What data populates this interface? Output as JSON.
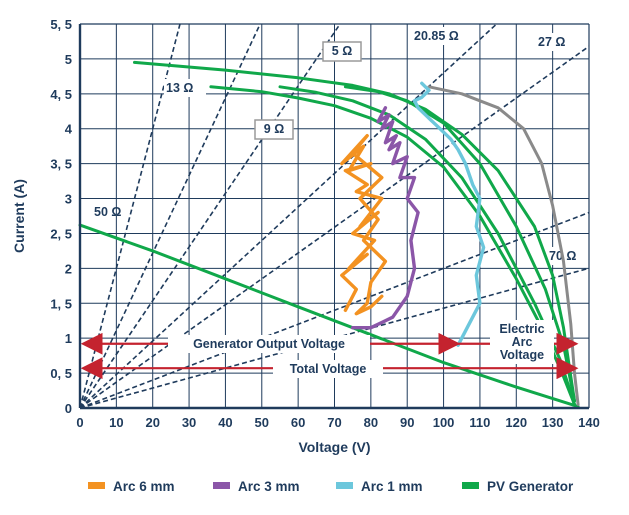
{
  "chart_data": {
    "type": "line",
    "xlabel": "Voltage (V)",
    "ylabel": "Current (A)",
    "xlim": [
      0,
      140
    ],
    "ylim": [
      0,
      5.5
    ],
    "x_ticks": [
      "0",
      "10",
      "20",
      "30",
      "40",
      "50",
      "60",
      "70",
      "80",
      "90",
      "100",
      "110",
      "120",
      "130",
      "140"
    ],
    "y_ticks": [
      "0",
      "0, 5",
      "1",
      "1, 5",
      "2",
      "2, 5",
      "3",
      "3, 5",
      "4",
      "4, 5",
      "5",
      "5, 5"
    ],
    "grid": true,
    "legend_position": "bottom",
    "colors": {
      "navy": "#1f3b5c",
      "pv": "#10a84a",
      "gray": "#8a8a8a",
      "arc6": "#f39221",
      "arc3": "#8b56a8",
      "arc1": "#6cc7dc",
      "red": "#c4232f"
    },
    "legend": [
      {
        "label": "Arc 6 mm",
        "color": "#f39221"
      },
      {
        "label": "Arc 3 mm",
        "color": "#8b56a8"
      },
      {
        "label": "Arc 1 mm",
        "color": "#6cc7dc"
      },
      {
        "label": "PV Generator",
        "color": "#10a84a"
      }
    ],
    "resistance_lines": [
      {
        "label": "50 Ω",
        "slope": 0.02
      },
      {
        "label": "13 Ω",
        "slope": 0.0769
      },
      {
        "label": "9 Ω",
        "slope": 0.111
      },
      {
        "label": "5 Ω",
        "slope": 0.2
      },
      {
        "label": "20.85 Ω",
        "slope": 0.048
      },
      {
        "label": "27 Ω",
        "slope": 0.037
      },
      {
        "label": "70 Ω",
        "slope": 0.0143
      }
    ],
    "series": [
      {
        "name": "PV Generator",
        "x": [
          15,
          40,
          60,
          75,
          85,
          95,
          105,
          115,
          125,
          130,
          133,
          135,
          136
        ],
        "y": [
          4.95,
          4.84,
          4.73,
          4.62,
          4.5,
          4.28,
          3.92,
          3.4,
          2.6,
          1.9,
          1.15,
          0.45,
          0.1
        ]
      },
      {
        "name": "PV Generator",
        "x": [
          36,
          50,
          60,
          70,
          80,
          90,
          100,
          110,
          120,
          128,
          133,
          136
        ],
        "y": [
          4.6,
          4.53,
          4.44,
          4.33,
          4.15,
          3.88,
          3.45,
          2.75,
          1.85,
          1.05,
          0.45,
          0.05
        ]
      },
      {
        "name": "PV Generator",
        "x": [
          55,
          65,
          75,
          85,
          95,
          105,
          115,
          125,
          132,
          136
        ],
        "y": [
          4.6,
          4.52,
          4.4,
          4.2,
          3.85,
          3.3,
          2.5,
          1.5,
          0.7,
          0.05
        ]
      },
      {
        "name": "PV Generator",
        "x": [
          73,
          82,
          90,
          100,
          110,
          120,
          128,
          133,
          136
        ],
        "y": [
          4.6,
          4.53,
          4.4,
          4.08,
          3.5,
          2.6,
          1.7,
          0.9,
          0.1
        ]
      },
      {
        "name": "PV Generator",
        "x": [
          0,
          20,
          40,
          60,
          80,
          100,
          120,
          137
        ],
        "y": [
          2.62,
          2.25,
          1.85,
          1.45,
          1.05,
          0.65,
          0.3,
          0.02
        ]
      },
      {
        "name": "",
        "x": [
          96,
          105,
          115,
          122,
          127,
          130,
          133,
          135,
          136,
          137
        ],
        "y": [
          4.6,
          4.5,
          4.3,
          4.0,
          3.5,
          2.9,
          2.1,
          1.2,
          0.5,
          0.05
        ]
      },
      {
        "name": "Arc 6 mm",
        "x": [
          73,
          76,
          72,
          79,
          74,
          81,
          75,
          82,
          77,
          83,
          76,
          79,
          73,
          80,
          74,
          78,
          72,
          79,
          75,
          83,
          77,
          82,
          78,
          84,
          80,
          79,
          76,
          80,
          83
        ],
        "y": [
          1.4,
          1.7,
          1.9,
          2.2,
          2.0,
          2.4,
          2.5,
          2.8,
          2.6,
          3.0,
          3.1,
          3.2,
          3.4,
          3.5,
          3.4,
          3.75,
          3.5,
          3.9,
          3.65,
          3.3,
          3.0,
          2.7,
          2.4,
          2.1,
          1.8,
          1.5,
          1.35,
          1.45,
          1.6
        ]
      },
      {
        "name": "Arc 3 mm",
        "x": [
          75,
          80,
          86,
          90,
          92,
          91,
          93,
          90,
          92,
          88,
          90,
          86,
          88,
          85,
          87,
          84,
          86,
          83,
          85,
          82,
          84
        ],
        "y": [
          1.15,
          1.15,
          1.3,
          1.6,
          2.0,
          2.4,
          2.8,
          3.0,
          3.3,
          3.3,
          3.6,
          3.5,
          3.8,
          3.7,
          3.9,
          3.8,
          4.1,
          4.0,
          4.2,
          4.1,
          4.3
        ]
      },
      {
        "name": "Arc 1 mm",
        "x": [
          104,
          107,
          110,
          109,
          111,
          109,
          110,
          108,
          106,
          104,
          102,
          100,
          98,
          96,
          95,
          93,
          92,
          94,
          96,
          95,
          94
        ],
        "y": [
          0.9,
          1.2,
          1.5,
          1.9,
          2.3,
          2.6,
          3.0,
          3.2,
          3.5,
          3.7,
          3.85,
          3.95,
          4.05,
          4.15,
          4.2,
          4.3,
          4.4,
          4.45,
          4.55,
          4.6,
          4.65
        ]
      }
    ],
    "annotations": [
      {
        "text": "Generator Output Voltage"
      },
      {
        "text": "Total Voltage"
      },
      {
        "text": "Electric"
      },
      {
        "text": "Arc"
      },
      {
        "text": "Voltage"
      }
    ]
  }
}
